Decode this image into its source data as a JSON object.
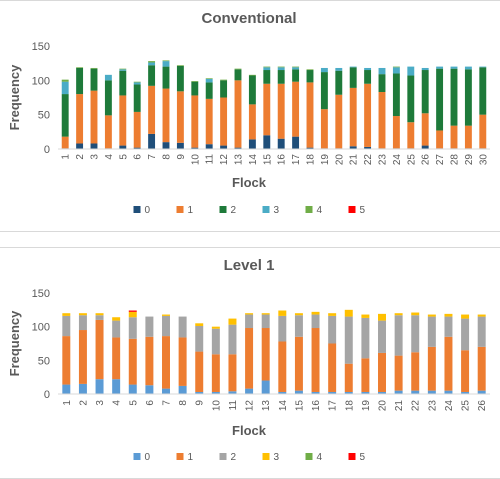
{
  "chart_data": [
    {
      "type": "bar",
      "stacked": true,
      "title": "Conventional",
      "xlabel": "Flock",
      "ylabel": "Frequency",
      "ylim": [
        0,
        150
      ],
      "yticks": [
        0,
        50,
        100,
        150
      ],
      "grid": false,
      "legend_position": "bottom",
      "categories": [
        "1",
        "2",
        "3",
        "4",
        "5",
        "6",
        "7",
        "8",
        "9",
        "10",
        "11",
        "12",
        "13",
        "14",
        "15",
        "16",
        "17",
        "18",
        "19",
        "20",
        "21",
        "22",
        "23",
        "24",
        "25",
        "26",
        "27",
        "28",
        "29",
        "30"
      ],
      "series": [
        {
          "name": "0",
          "color": "#1f4e79",
          "values": [
            1,
            8,
            8,
            1,
            5,
            2,
            22,
            10,
            9,
            2,
            7,
            5,
            2,
            14,
            20,
            15,
            18,
            2,
            1,
            1,
            4,
            3,
            1,
            1,
            1,
            5,
            1,
            1,
            1,
            1
          ]
        },
        {
          "name": "1",
          "color": "#ed7d31",
          "values": [
            17,
            72,
            77,
            48,
            73,
            52,
            70,
            78,
            75,
            76,
            66,
            70,
            98,
            51,
            75,
            80,
            80,
            95,
            57,
            78,
            85,
            92,
            82,
            47,
            38,
            47,
            26,
            33,
            33,
            49
          ]
        },
        {
          "name": "2",
          "color": "#1e7a3a",
          "values": [
            62,
            38,
            32,
            51,
            36,
            40,
            30,
            32,
            37,
            20,
            24,
            25,
            16,
            42,
            20,
            20,
            18,
            18,
            54,
            35,
            30,
            20,
            26,
            62,
            68,
            63,
            90,
            83,
            82,
            69
          ]
        },
        {
          "name": "3",
          "color": "#4bacc6",
          "values": [
            18,
            0,
            0,
            8,
            2,
            3,
            4,
            8,
            0,
            0,
            5,
            0,
            0,
            0,
            4,
            4,
            3,
            0,
            6,
            4,
            1,
            3,
            9,
            9,
            13,
            3,
            3,
            3,
            4,
            1
          ]
        },
        {
          "name": "4",
          "color": "#70ad47",
          "values": [
            3,
            1,
            1,
            0,
            1,
            1,
            2,
            1,
            1,
            1,
            1,
            1,
            1,
            1,
            1,
            1,
            1,
            1,
            0,
            0,
            0,
            0,
            0,
            1,
            0,
            0,
            0,
            0,
            0,
            0
          ]
        },
        {
          "name": "5",
          "color": "#ff0000",
          "values": [
            0,
            0,
            0,
            0,
            0,
            0,
            0,
            0,
            0,
            0,
            0,
            0,
            0,
            0,
            0,
            0,
            0,
            0,
            0,
            0,
            0,
            0,
            0,
            0,
            0,
            0,
            0,
            0,
            0,
            0
          ]
        }
      ]
    },
    {
      "type": "bar",
      "stacked": true,
      "title": "Level 1",
      "xlabel": "Flock",
      "ylabel": "Frequency",
      "ylim": [
        0,
        150
      ],
      "yticks": [
        0,
        50,
        100,
        150
      ],
      "grid": false,
      "legend_position": "bottom",
      "categories": [
        "1",
        "2",
        "3",
        "4",
        "5",
        "6",
        "7",
        "8",
        "9",
        "10",
        "11",
        "12",
        "13",
        "14",
        "15",
        "16",
        "17",
        "18",
        "19",
        "20",
        "21",
        "22",
        "23",
        "24",
        "25",
        "26"
      ],
      "series": [
        {
          "name": "0",
          "color": "#5b9bd5",
          "values": [
            14,
            15,
            22,
            22,
            14,
            13,
            8,
            12,
            3,
            3,
            4,
            8,
            20,
            3,
            5,
            3,
            3,
            3,
            3,
            3,
            5,
            5,
            5,
            5,
            3,
            5
          ]
        },
        {
          "name": "1",
          "color": "#ed7d31",
          "values": [
            72,
            80,
            88,
            62,
            68,
            72,
            78,
            72,
            60,
            56,
            55,
            90,
            78,
            75,
            80,
            95,
            72,
            42,
            50,
            58,
            52,
            57,
            65,
            80,
            62,
            65
          ]
        },
        {
          "name": "2",
          "color": "#a5a5a5",
          "values": [
            30,
            22,
            7,
            25,
            32,
            30,
            30,
            31,
            38,
            38,
            44,
            20,
            20,
            38,
            32,
            20,
            41,
            70,
            60,
            48,
            60,
            55,
            45,
            30,
            47,
            45
          ]
        },
        {
          "name": "3",
          "color": "#ffc000",
          "values": [
            4,
            3,
            3,
            5,
            8,
            0,
            2,
            0,
            4,
            3,
            9,
            2,
            2,
            8,
            3,
            4,
            4,
            10,
            5,
            10,
            3,
            4,
            3,
            4,
            6,
            3
          ]
        },
        {
          "name": "4",
          "color": "#70ad47",
          "values": [
            0,
            0,
            0,
            0,
            0,
            0,
            0,
            0,
            0,
            0,
            0,
            0,
            0,
            0,
            0,
            0,
            0,
            0,
            0,
            0,
            0,
            0,
            0,
            0,
            0,
            0
          ]
        },
        {
          "name": "5",
          "color": "#ff0000",
          "values": [
            0,
            0,
            0,
            0,
            2,
            0,
            0,
            0,
            0,
            0,
            0,
            0,
            0,
            0,
            0,
            0,
            0,
            0,
            0,
            0,
            0,
            0,
            0,
            0,
            0,
            0
          ]
        }
      ]
    }
  ]
}
